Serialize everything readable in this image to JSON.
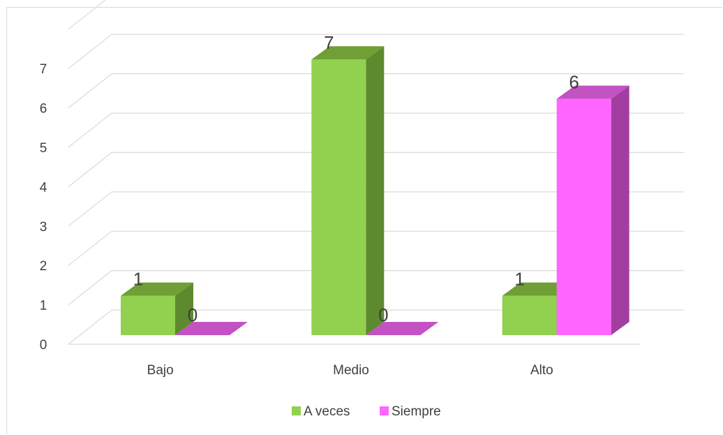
{
  "chart_data": {
    "type": "bar",
    "three_d": true,
    "categories": [
      "Bajo",
      "Medio",
      "Alto"
    ],
    "series": [
      {
        "name": "A veces",
        "values": [
          1,
          7,
          1
        ],
        "color": "#92d050",
        "side_color": "#5e8a2e",
        "top_color": "#6f9f35"
      },
      {
        "name": "Siempre",
        "values": [
          0,
          0,
          6
        ],
        "color": "#ff66ff",
        "side_color": "#a23ea2",
        "top_color": "#c352c3"
      }
    ],
    "yticks": [
      "0",
      "1",
      "2",
      "3",
      "4",
      "5",
      "6",
      "7"
    ],
    "ylim": [
      0,
      7
    ],
    "grid": true,
    "legend": "bottom",
    "data_labels": true
  }
}
